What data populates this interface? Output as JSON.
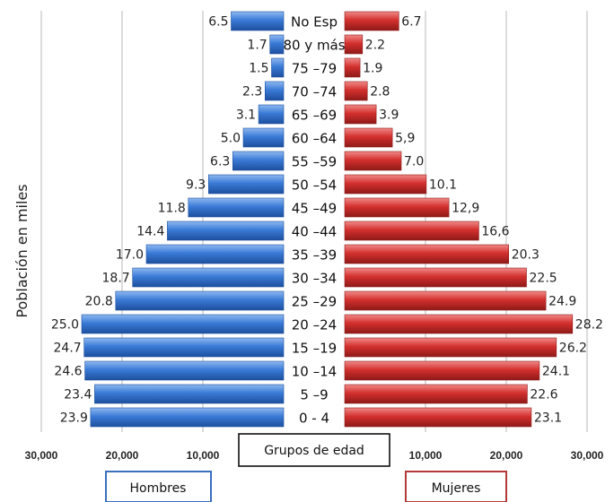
{
  "chart_data": {
    "type": "bar",
    "orientation": "horizontal-population-pyramid",
    "ylabel": "Población en miles",
    "center_label": "Grupos de edad",
    "categories": [
      "0 - 4",
      "5 –9",
      "10 –14",
      "15 –19",
      "20 –24",
      "25 –29",
      "30 –34",
      "35 –39",
      "40 –44",
      "45 –49",
      "50 –54",
      "55 –59",
      "60 –64",
      "65 –69",
      "70 –74",
      "75 –79",
      "80 y más",
      "No Esp"
    ],
    "series": [
      {
        "name": "Hombres",
        "side": "left",
        "color": "#2f6fd0",
        "values": [
          23.9,
          23.4,
          24.6,
          24.7,
          25.0,
          20.8,
          18.7,
          17.0,
          14.4,
          11.8,
          9.3,
          6.3,
          5.0,
          3.1,
          2.3,
          1.5,
          1.7,
          6.5
        ],
        "labels": [
          "23.9",
          "23.4",
          "24.6",
          "24.7",
          "25.0",
          "20.8",
          "18.7",
          "17.0",
          "14.4",
          "11.8",
          "9.3",
          "6.3",
          "5.0",
          "3.1",
          "2.3",
          "1.5",
          "1.7",
          "6.5"
        ]
      },
      {
        "name": "Mujeres",
        "side": "right",
        "color": "#d0302e",
        "values": [
          23.1,
          22.6,
          24.1,
          26.2,
          28.2,
          24.9,
          22.5,
          20.3,
          16.6,
          12.9,
          10.1,
          7.0,
          5.9,
          3.9,
          2.8,
          1.9,
          2.2,
          6.7
        ],
        "labels": [
          "23.1",
          "22.6",
          "24.1",
          "26.2",
          "28.2",
          "24.9",
          "22.5",
          "20.3",
          "16,6",
          "12,9",
          "10.1",
          "7.0",
          "5,9",
          "3.9",
          "2.8",
          "1.9",
          "2.2",
          "6.7"
        ]
      }
    ],
    "xlim": [
      0,
      30
    ],
    "ticks_left": [
      "30,000",
      "20,000",
      "10,000"
    ],
    "ticks_right": [
      "10,000",
      "20,000",
      "30,000"
    ],
    "tick_values": [
      30,
      20,
      10
    ],
    "grid": true,
    "legend": "bottom"
  }
}
